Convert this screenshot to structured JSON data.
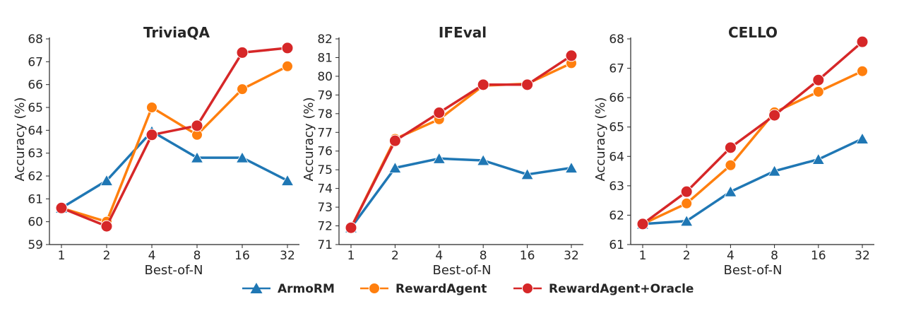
{
  "chart_data": [
    {
      "type": "line",
      "title": "TriviaQA",
      "xlabel": "Best-of-N",
      "ylabel": "Accuracy (%)",
      "categories": [
        "1",
        "2",
        "4",
        "8",
        "16",
        "32"
      ],
      "yticks": [
        "59",
        "60",
        "61",
        "62",
        "63",
        "64",
        "65",
        "66",
        "67",
        "68"
      ],
      "ylim": [
        59,
        68
      ],
      "series": [
        {
          "name": "ArmoRM",
          "values": [
            60.6,
            61.8,
            63.95,
            62.8,
            62.8,
            61.8
          ]
        },
        {
          "name": "RewardAgent",
          "values": [
            60.6,
            60.0,
            65.0,
            63.8,
            65.8,
            66.8
          ]
        },
        {
          "name": "RewardAgent+Oracle",
          "values": [
            60.6,
            59.8,
            63.8,
            64.2,
            67.4,
            67.6
          ]
        }
      ]
    },
    {
      "type": "line",
      "title": "IFEval",
      "xlabel": "Best-of-N",
      "ylabel": "Accuracy (%)",
      "categories": [
        "1",
        "2",
        "4",
        "8",
        "16",
        "32"
      ],
      "yticks": [
        "71",
        "72",
        "73",
        "74",
        "75",
        "76",
        "77",
        "78",
        "79",
        "80",
        "81",
        "82"
      ],
      "ylim": [
        71,
        82
      ],
      "series": [
        {
          "name": "ArmoRM",
          "values": [
            71.9,
            75.1,
            75.6,
            75.5,
            74.75,
            75.1
          ]
        },
        {
          "name": "RewardAgent",
          "values": [
            71.9,
            76.65,
            77.7,
            79.5,
            79.6,
            80.7
          ]
        },
        {
          "name": "RewardAgent+Oracle",
          "values": [
            71.9,
            76.55,
            78.05,
            79.55,
            79.55,
            81.1
          ]
        }
      ]
    },
    {
      "type": "line",
      "title": "CELLO",
      "xlabel": "Best-of-N",
      "ylabel": "Accuracy (%)",
      "categories": [
        "1",
        "2",
        "4",
        "8",
        "16",
        "32"
      ],
      "yticks": [
        "61",
        "62",
        "63",
        "64",
        "65",
        "66",
        "67",
        "68"
      ],
      "ylim": [
        61,
        68
      ],
      "series": [
        {
          "name": "ArmoRM",
          "values": [
            61.7,
            61.8,
            62.8,
            63.5,
            63.9,
            64.6
          ]
        },
        {
          "name": "RewardAgent",
          "values": [
            61.7,
            62.4,
            63.7,
            65.5,
            66.2,
            66.9
          ]
        },
        {
          "name": "RewardAgent+Oracle",
          "values": [
            61.7,
            62.8,
            64.3,
            65.4,
            66.6,
            67.9
          ]
        }
      ]
    }
  ],
  "legend": {
    "placement": "bottom-center",
    "items": [
      {
        "label": "ArmoRM",
        "color": "#1f77b4",
        "marker": "triangle"
      },
      {
        "label": "RewardAgent",
        "color": "#ff7f0e",
        "marker": "circle"
      },
      {
        "label": "RewardAgent+Oracle",
        "color": "#d62728",
        "marker": "circle"
      }
    ]
  },
  "colors": {
    "ArmoRM": "#1f77b4",
    "RewardAgent": "#ff7f0e",
    "RewardAgent+Oracle": "#d62728"
  }
}
